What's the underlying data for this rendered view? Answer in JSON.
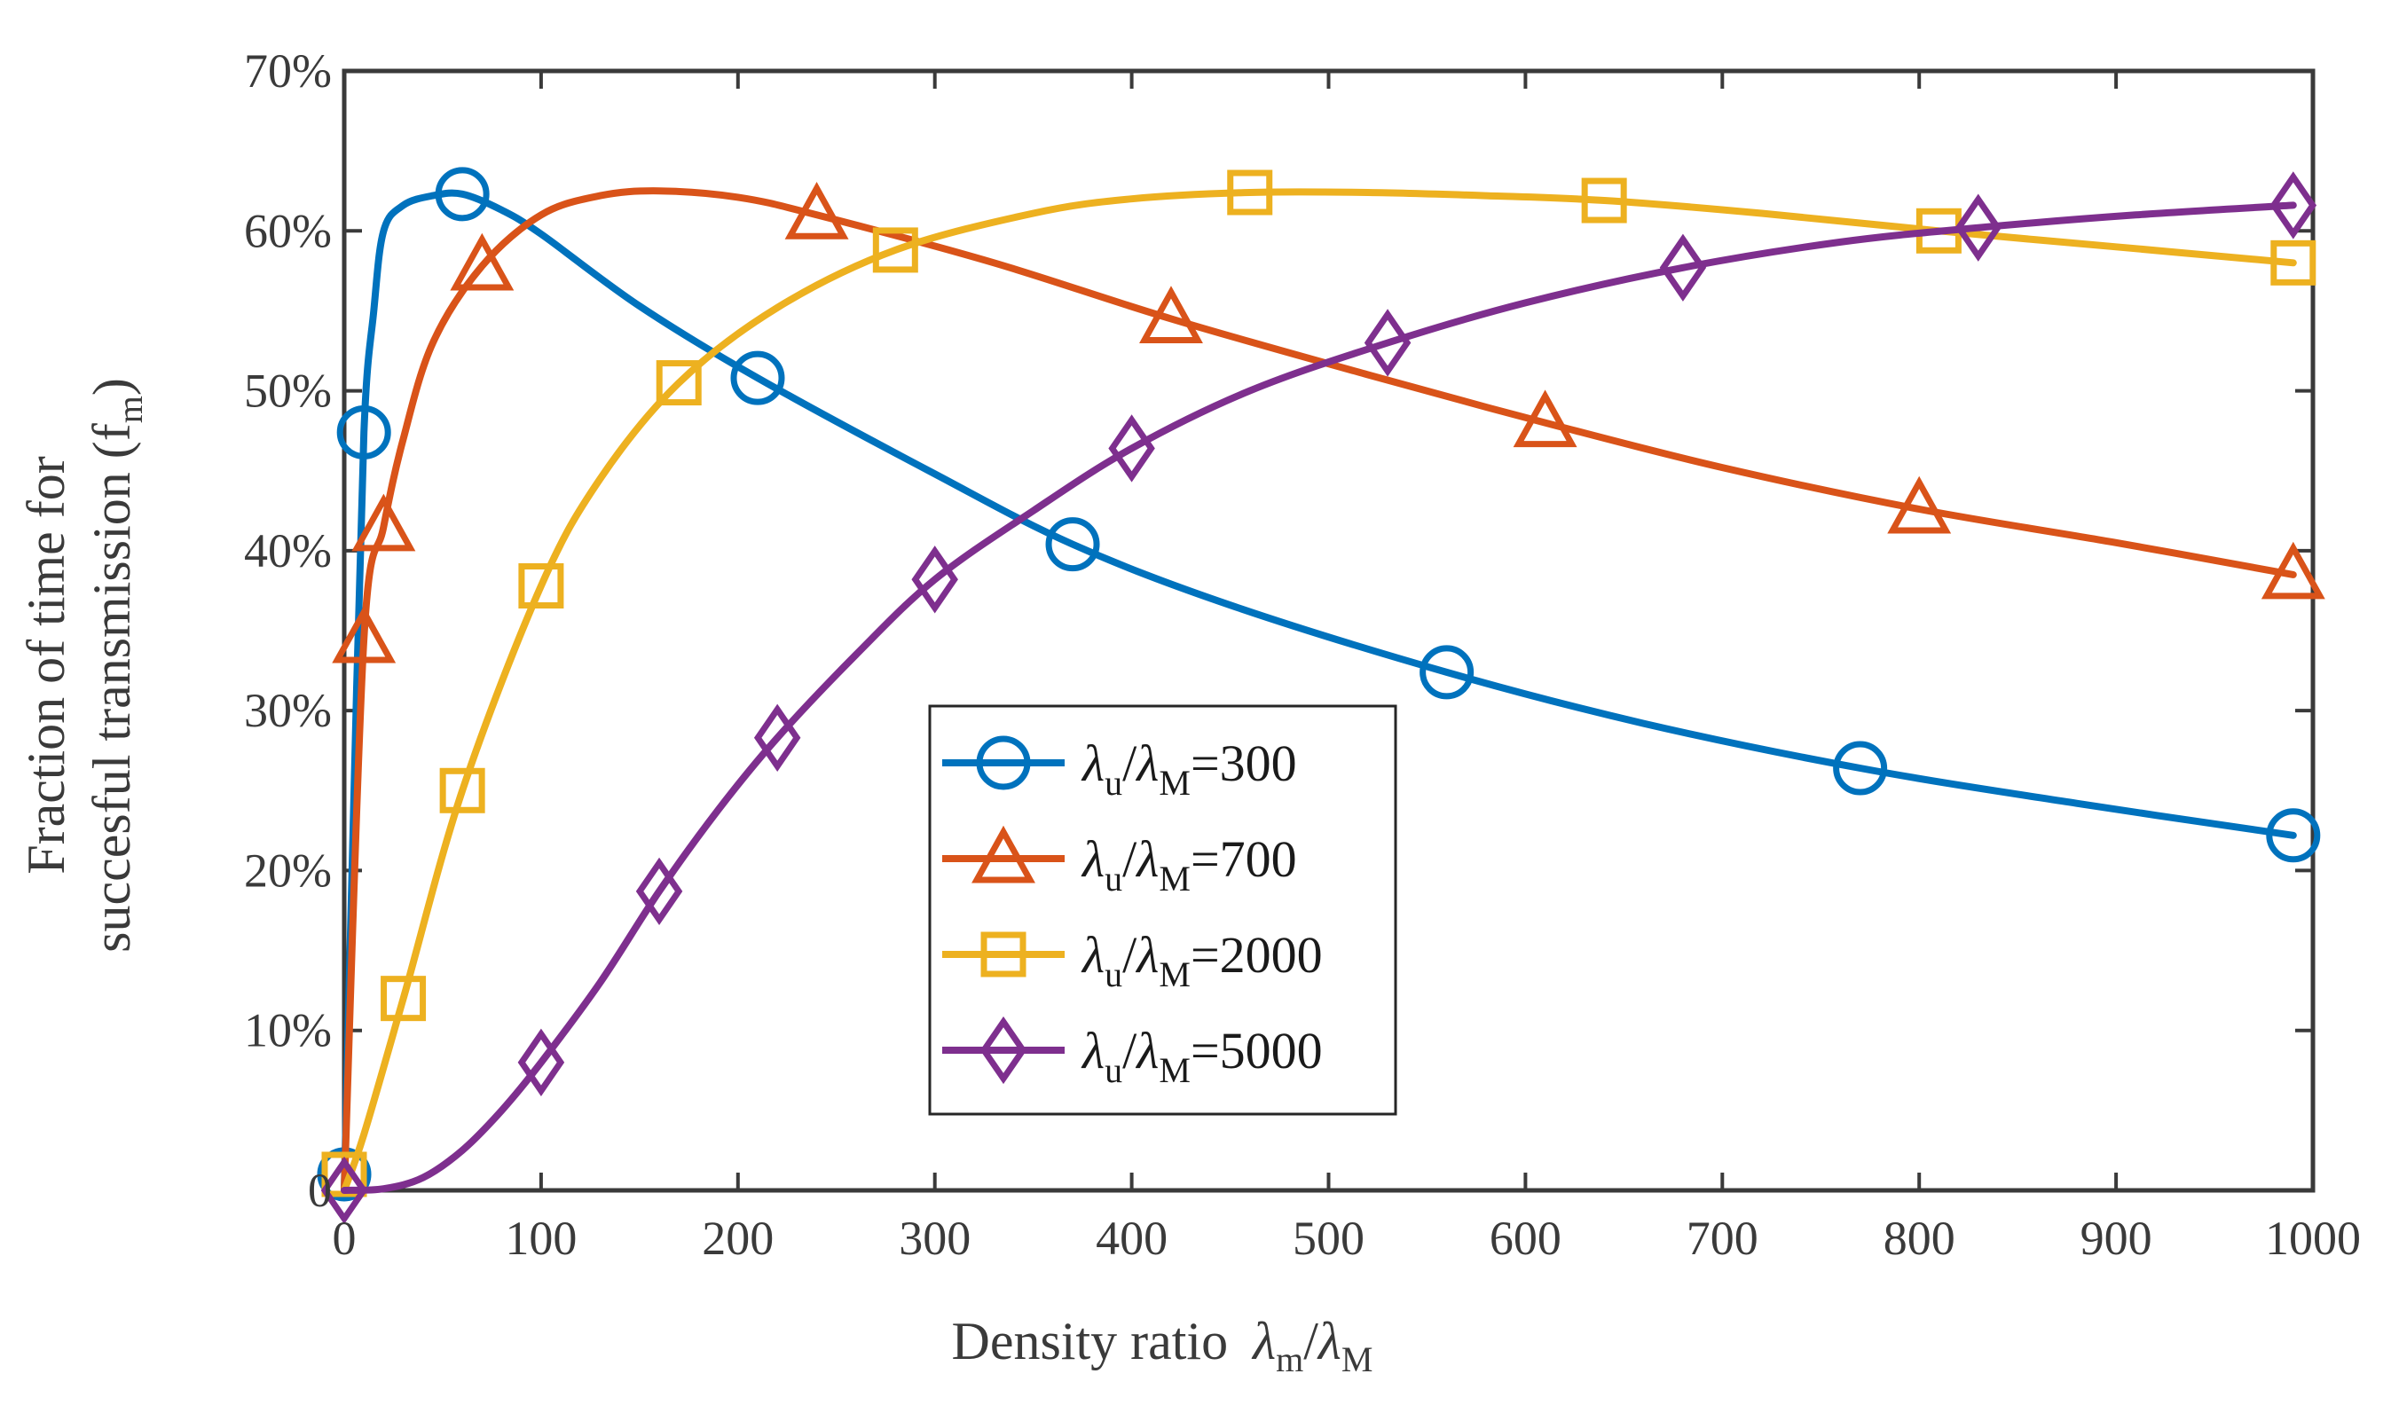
{
  "chart_data": {
    "type": "line",
    "title": "",
    "xlabel": "Density ratio",
    "xlabel_symbol": {
      "base1": "λ",
      "sub1": "m",
      "slash": "/",
      "base2": "λ",
      "sub2": "M"
    },
    "ylabel_line1": "Fraction of time for",
    "ylabel_line2_prefix": "succesful transmission (f",
    "ylabel_line2_sub": "m",
    "ylabel_line2_suffix": ")",
    "xlim": [
      0,
      1000
    ],
    "ylim": [
      0,
      70
    ],
    "x_ticks": [
      0,
      100,
      200,
      300,
      400,
      500,
      600,
      700,
      800,
      900,
      1000
    ],
    "x_tick_labels": [
      "0",
      "100",
      "200",
      "300",
      "400",
      "500",
      "600",
      "700",
      "800",
      "900",
      "1000"
    ],
    "y_ticks": [
      0,
      10,
      20,
      30,
      40,
      50,
      60,
      70
    ],
    "y_tick_labels": [
      "0",
      "10%",
      "20%",
      "30%",
      "40%",
      "50%",
      "60%",
      "70%"
    ],
    "legend_position": "center",
    "series": [
      {
        "name": "λu/λM=300",
        "legend": {
          "l1": "λ",
          "s1": "u",
          "sl": "/",
          "l2": "λ",
          "s2": "M",
          "eq": "=300"
        },
        "color": "#0072BD",
        "marker": "circle",
        "curve": [
          [
            0,
            0
          ],
          [
            5,
            25
          ],
          [
            10,
            47.4
          ],
          [
            15,
            55
          ],
          [
            20,
            60
          ],
          [
            30,
            61.6
          ],
          [
            45,
            62.2
          ],
          [
            60,
            62.3
          ],
          [
            80,
            61.3
          ],
          [
            100,
            59.8
          ],
          [
            150,
            55.3
          ],
          [
            210,
            50.8
          ],
          [
            300,
            44.8
          ],
          [
            370,
            40.4
          ],
          [
            450,
            36.6
          ],
          [
            560,
            32.4
          ],
          [
            660,
            29.2
          ],
          [
            770,
            26.4
          ],
          [
            880,
            24.2
          ],
          [
            990,
            22.2
          ]
        ],
        "markers": [
          [
            0,
            1
          ],
          [
            10,
            47.4
          ],
          [
            60,
            62.3
          ],
          [
            210,
            50.8
          ],
          [
            370,
            40.4
          ],
          [
            560,
            32.4
          ],
          [
            770,
            26.4
          ],
          [
            990,
            22.2
          ]
        ]
      },
      {
        "name": "λu/λM=700",
        "legend": {
          "l1": "λ",
          "s1": "u",
          "sl": "/",
          "l2": "λ",
          "s2": "M",
          "eq": "=700"
        },
        "color": "#D95319",
        "marker": "triangle",
        "curve": [
          [
            0,
            0
          ],
          [
            10,
            34.5
          ],
          [
            20,
            41.5
          ],
          [
            30,
            47
          ],
          [
            45,
            53
          ],
          [
            70,
            57.8
          ],
          [
            100,
            61
          ],
          [
            130,
            62.2
          ],
          [
            160,
            62.5
          ],
          [
            200,
            62.1
          ],
          [
            240,
            61
          ],
          [
            330,
            58
          ],
          [
            420,
            54.5
          ],
          [
            520,
            51
          ],
          [
            610,
            48
          ],
          [
            700,
            45.2
          ],
          [
            800,
            42.6
          ],
          [
            900,
            40.5
          ],
          [
            990,
            38.5
          ]
        ],
        "markers": [
          [
            10,
            34.5
          ],
          [
            20,
            41.5
          ],
          [
            70,
            57.8
          ],
          [
            240,
            61
          ],
          [
            420,
            54.5
          ],
          [
            610,
            48
          ],
          [
            800,
            42.6
          ],
          [
            990,
            38.5
          ]
        ]
      },
      {
        "name": "λu/λM=2000",
        "legend": {
          "l1": "λ",
          "s1": "u",
          "sl": "/",
          "l2": "λ",
          "s2": "M",
          "eq": "=2000"
        },
        "color": "#EDB120",
        "marker": "square",
        "curve": [
          [
            0,
            0
          ],
          [
            10,
            3.5
          ],
          [
            30,
            12
          ],
          [
            60,
            25
          ],
          [
            100,
            37.8
          ],
          [
            130,
            44.5
          ],
          [
            170,
            50.5
          ],
          [
            220,
            55.2
          ],
          [
            280,
            58.8
          ],
          [
            350,
            61.1
          ],
          [
            400,
            62
          ],
          [
            460,
            62.4
          ],
          [
            520,
            62.4
          ],
          [
            580,
            62.2
          ],
          [
            640,
            61.9
          ],
          [
            720,
            61.1
          ],
          [
            810,
            60
          ],
          [
            900,
            59
          ],
          [
            990,
            58
          ]
        ],
        "markers": [
          [
            0,
            1
          ],
          [
            30,
            12
          ],
          [
            60,
            25
          ],
          [
            100,
            37.8
          ],
          [
            170,
            50.5
          ],
          [
            280,
            58.8
          ],
          [
            460,
            62.4
          ],
          [
            640,
            61.9
          ],
          [
            810,
            60
          ],
          [
            990,
            58
          ]
        ]
      },
      {
        "name": "λu/λM=5000",
        "legend": {
          "l1": "λ",
          "s1": "u",
          "sl": "/",
          "l2": "λ",
          "s2": "M",
          "eq": "=5000"
        },
        "color": "#7E2F8E",
        "marker": "diamond",
        "curve": [
          [
            0,
            0
          ],
          [
            20,
            0.1
          ],
          [
            40,
            0.8
          ],
          [
            60,
            2.5
          ],
          [
            80,
            5
          ],
          [
            100,
            8
          ],
          [
            130,
            13
          ],
          [
            160,
            18.7
          ],
          [
            190,
            23.8
          ],
          [
            220,
            28.3
          ],
          [
            260,
            33.5
          ],
          [
            300,
            38.2
          ],
          [
            350,
            42.5
          ],
          [
            400,
            46.4
          ],
          [
            460,
            50
          ],
          [
            530,
            53
          ],
          [
            600,
            55.5
          ],
          [
            680,
            57.7
          ],
          [
            760,
            59.3
          ],
          [
            830,
            60.2
          ],
          [
            910,
            61
          ],
          [
            990,
            61.6
          ]
        ],
        "markers": [
          [
            0,
            0
          ],
          [
            100,
            8
          ],
          [
            160,
            18.7
          ],
          [
            220,
            28.3
          ],
          [
            300,
            38.2
          ],
          [
            400,
            46.4
          ],
          [
            530,
            53
          ],
          [
            680,
            57.7
          ],
          [
            830,
            60.2
          ],
          [
            990,
            61.6
          ]
        ]
      }
    ]
  }
}
